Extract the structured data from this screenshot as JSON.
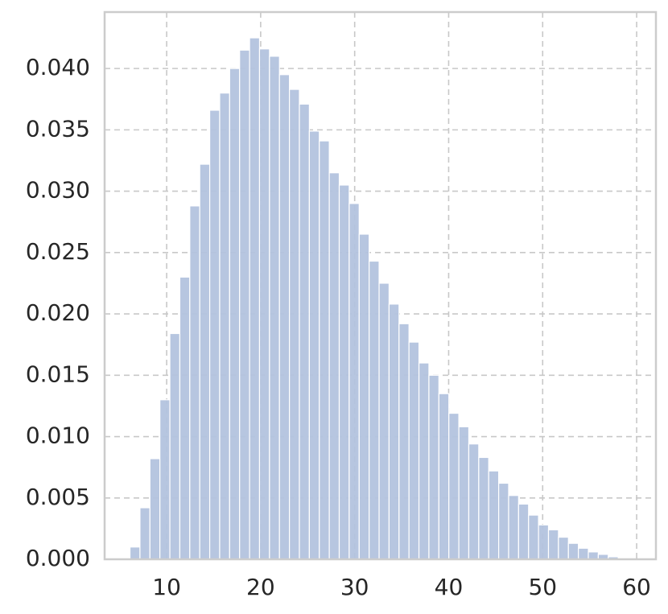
{
  "chart_data": {
    "type": "histogram",
    "bins": [
      6.1,
      7.16,
      8.22,
      9.28,
      10.34,
      11.4,
      12.46,
      13.52,
      14.58,
      15.64,
      16.7,
      17.76,
      18.82,
      19.88,
      20.94,
      22.0,
      23.06,
      24.12,
      25.18,
      26.24,
      27.3,
      28.36,
      29.42,
      30.48,
      31.54,
      32.6,
      33.66,
      34.72,
      35.78,
      36.84,
      37.9,
      38.96,
      40.02,
      41.08,
      42.14,
      43.2,
      44.26,
      45.32,
      46.38,
      47.44,
      48.5,
      49.56,
      50.62,
      51.68,
      52.74,
      53.8,
      54.86,
      55.92,
      56.98,
      58.04,
      59.1
    ],
    "values": [
      0.001,
      0.0042,
      0.0082,
      0.013,
      0.0184,
      0.023,
      0.0288,
      0.0322,
      0.0366,
      0.038,
      0.04,
      0.0415,
      0.0425,
      0.0416,
      0.041,
      0.0395,
      0.0383,
      0.0371,
      0.0349,
      0.0341,
      0.0315,
      0.0305,
      0.029,
      0.0265,
      0.0243,
      0.0225,
      0.0208,
      0.0192,
      0.0177,
      0.016,
      0.015,
      0.0135,
      0.0119,
      0.0108,
      0.0094,
      0.0083,
      0.0072,
      0.0062,
      0.0052,
      0.0045,
      0.0036,
      0.0028,
      0.0024,
      0.0018,
      0.0013,
      0.0009,
      0.0006,
      0.0004,
      0.0002,
      5e-05
    ],
    "color": "#b3c3de",
    "xlim": [
      3.4,
      62.05
    ],
    "xticks": [
      10,
      20,
      30,
      40,
      50,
      60
    ],
    "ylim": [
      0,
      0.0446
    ],
    "yticks": [
      {
        "value": 0,
        "label": "0.000"
      },
      {
        "value": 0.005,
        "label": "0.005"
      },
      {
        "value": 0.01,
        "label": "0.010"
      },
      {
        "value": 0.015,
        "label": "0.015"
      },
      {
        "value": 0.02,
        "label": "0.020"
      },
      {
        "value": 0.025,
        "label": "0.025"
      },
      {
        "value": 0.03,
        "label": "0.030"
      },
      {
        "value": 0.035,
        "label": "0.035"
      },
      {
        "value": 0.04,
        "label": "0.040"
      }
    ],
    "grid": true
  }
}
